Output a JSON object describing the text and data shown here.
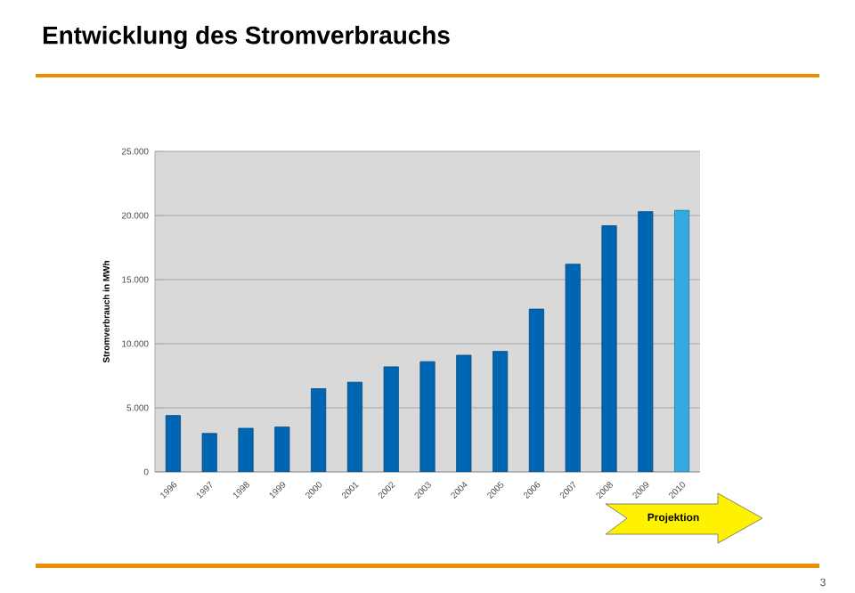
{
  "chart_data": {
    "type": "bar",
    "title": "Entwicklung des Stromverbrauchs",
    "ylabel": "Stromverbrauch in MWh",
    "categories": [
      "1996",
      "1997",
      "1998",
      "1999",
      "2000",
      "2001",
      "2002",
      "2003",
      "2004",
      "2005",
      "2006",
      "2007",
      "2008",
      "2009",
      "2010"
    ],
    "values": [
      4400,
      3000,
      3400,
      3500,
      6500,
      7000,
      8200,
      8600,
      9100,
      9400,
      12700,
      16200,
      19200,
      20300,
      20400
    ],
    "colors": [
      "#0066b3",
      "#0066b3",
      "#0066b3",
      "#0066b3",
      "#0066b3",
      "#0066b3",
      "#0066b3",
      "#0066b3",
      "#0066b3",
      "#0066b3",
      "#0066b3",
      "#0066b3",
      "#0066b3",
      "#0066b3",
      "#33aadd"
    ],
    "ylim": [
      0,
      25000
    ],
    "yticks": [
      0,
      {
        "value": 5000,
        "label": "5.000"
      },
      {
        "value": 10000,
        "label": "10.000"
      },
      {
        "value": 15000,
        "label": "15.000"
      },
      {
        "value": 20000,
        "label": "20.000"
      },
      {
        "value": 25000,
        "label": "25.000"
      }
    ],
    "grid": "y",
    "annotations": [
      "Projektion",
      "3"
    ]
  }
}
